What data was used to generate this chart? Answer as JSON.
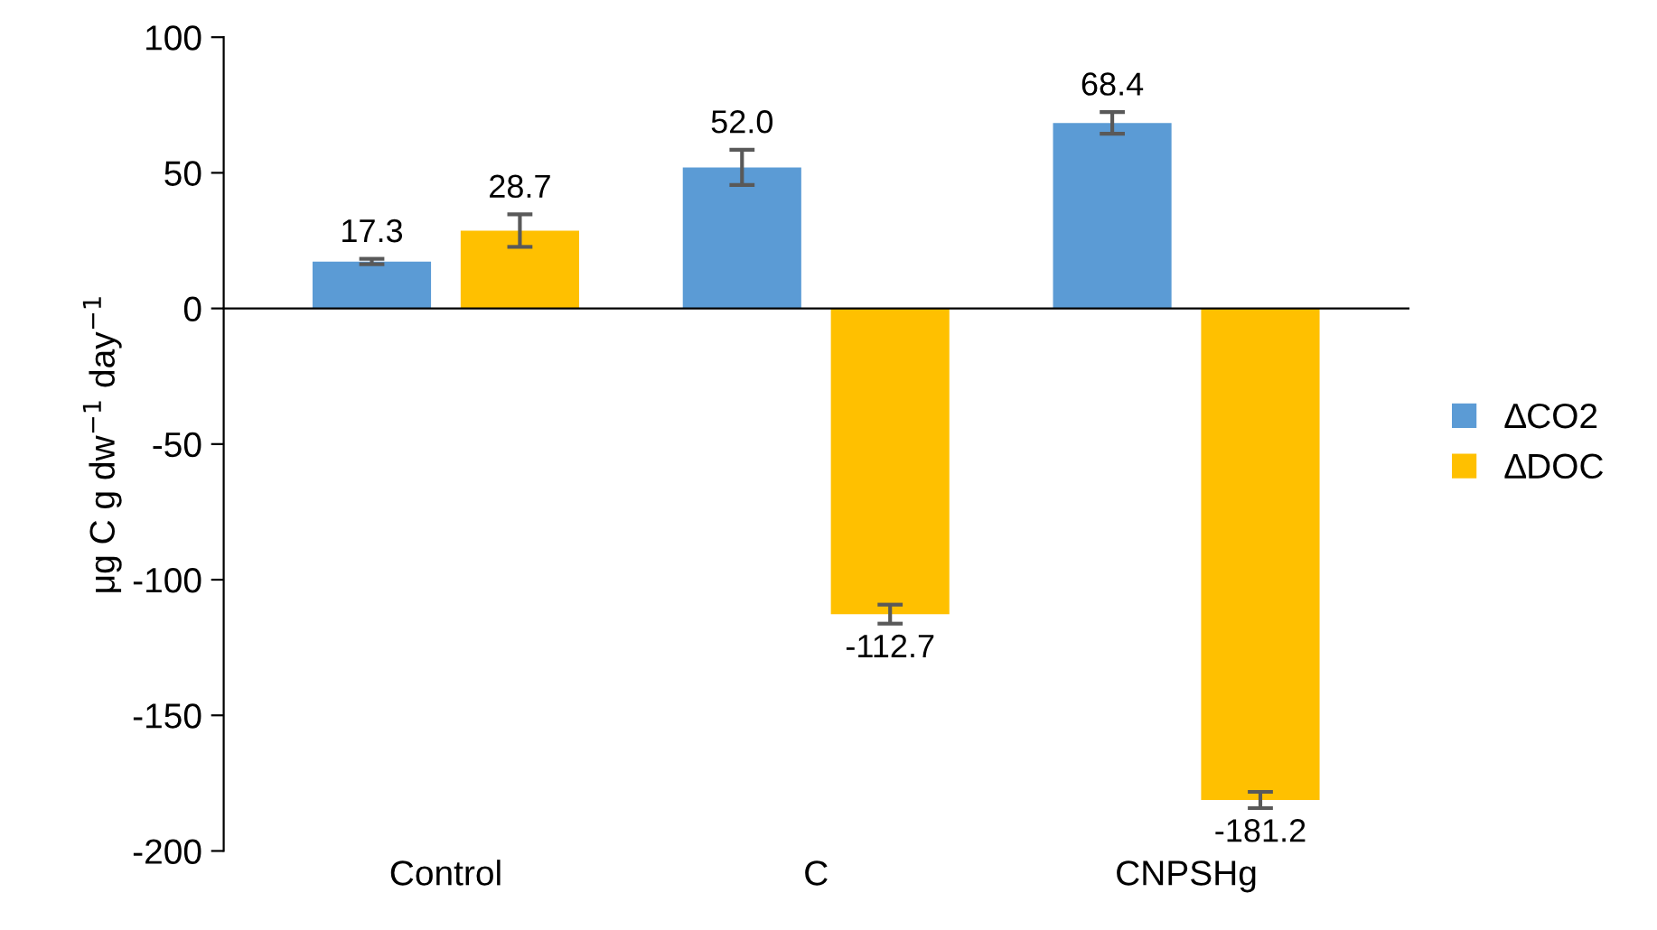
{
  "chart_data": {
    "type": "bar",
    "ylabel": "μg C g dw$^{−1}$ day$^{−1}$",
    "categories": [
      "Control",
      "C",
      "CNPSHg"
    ],
    "series": [
      {
        "name": "∆CO2",
        "color": "#5b9bd5",
        "values": [
          17.3,
          52.0,
          68.4
        ],
        "errors": [
          1,
          6.5,
          4
        ],
        "value_labels": [
          "17.3",
          "52.0",
          "68.4"
        ]
      },
      {
        "name": "∆DOC",
        "color": "#ffc000",
        "values": [
          28.7,
          -112.7,
          -181.2
        ],
        "errors": [
          6,
          3.5,
          3
        ],
        "value_labels": [
          "28.7",
          "-112.7",
          "-181.2"
        ]
      }
    ],
    "ylim": [
      -200,
      100
    ],
    "yticks": [
      {
        "value": -200,
        "label": "-200"
      },
      {
        "value": -150,
        "label": "-150"
      },
      {
        "value": -100,
        "label": "-100"
      },
      {
        "value": -50,
        "label": "-50"
      },
      0,
      50,
      100
    ],
    "legend": "right"
  }
}
